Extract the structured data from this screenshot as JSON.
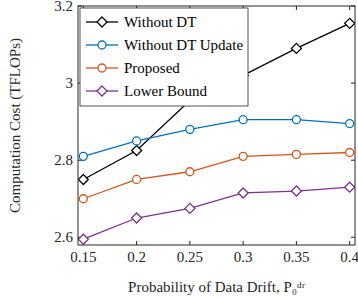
{
  "chart_data": {
    "type": "line",
    "x_label": "Probability of Data Drift, P₀ᵈʳ",
    "y_label": "Computation Cost (TFLOPs)",
    "x": [
      0.15,
      0.2,
      0.25,
      0.3,
      0.35,
      0.4
    ],
    "xlim": [
      0.145,
      0.405
    ],
    "xticks": [
      0.15,
      0.2,
      0.25,
      0.3,
      0.35,
      0.4
    ],
    "ylim": [
      2.58,
      3.2
    ],
    "yticks": [
      2.6,
      2.8,
      3,
      {
        "value": 3.2,
        "label": "3.2"
      }
    ],
    "grid": false,
    "legend": "upper left",
    "series": [
      {
        "name": "Without DT",
        "color": "#000000",
        "marker": "diamond",
        "values": [
          2.75,
          2.825,
          2.955,
          3.02,
          3.09,
          3.155
        ]
      },
      {
        "name": "Without DT Update",
        "color": "#0072BD",
        "marker": "circle",
        "values": [
          2.81,
          2.85,
          2.88,
          2.905,
          2.905,
          2.895
        ]
      },
      {
        "name": "Proposed",
        "color": "#D95319",
        "marker": "circle",
        "values": [
          2.7,
          2.75,
          2.77,
          2.81,
          2.815,
          2.82
        ]
      },
      {
        "name": "Lower Bound",
        "color": "#7E2F8E",
        "marker": "diamond",
        "values": [
          2.595,
          2.65,
          2.675,
          2.715,
          2.72,
          2.73
        ]
      }
    ]
  }
}
